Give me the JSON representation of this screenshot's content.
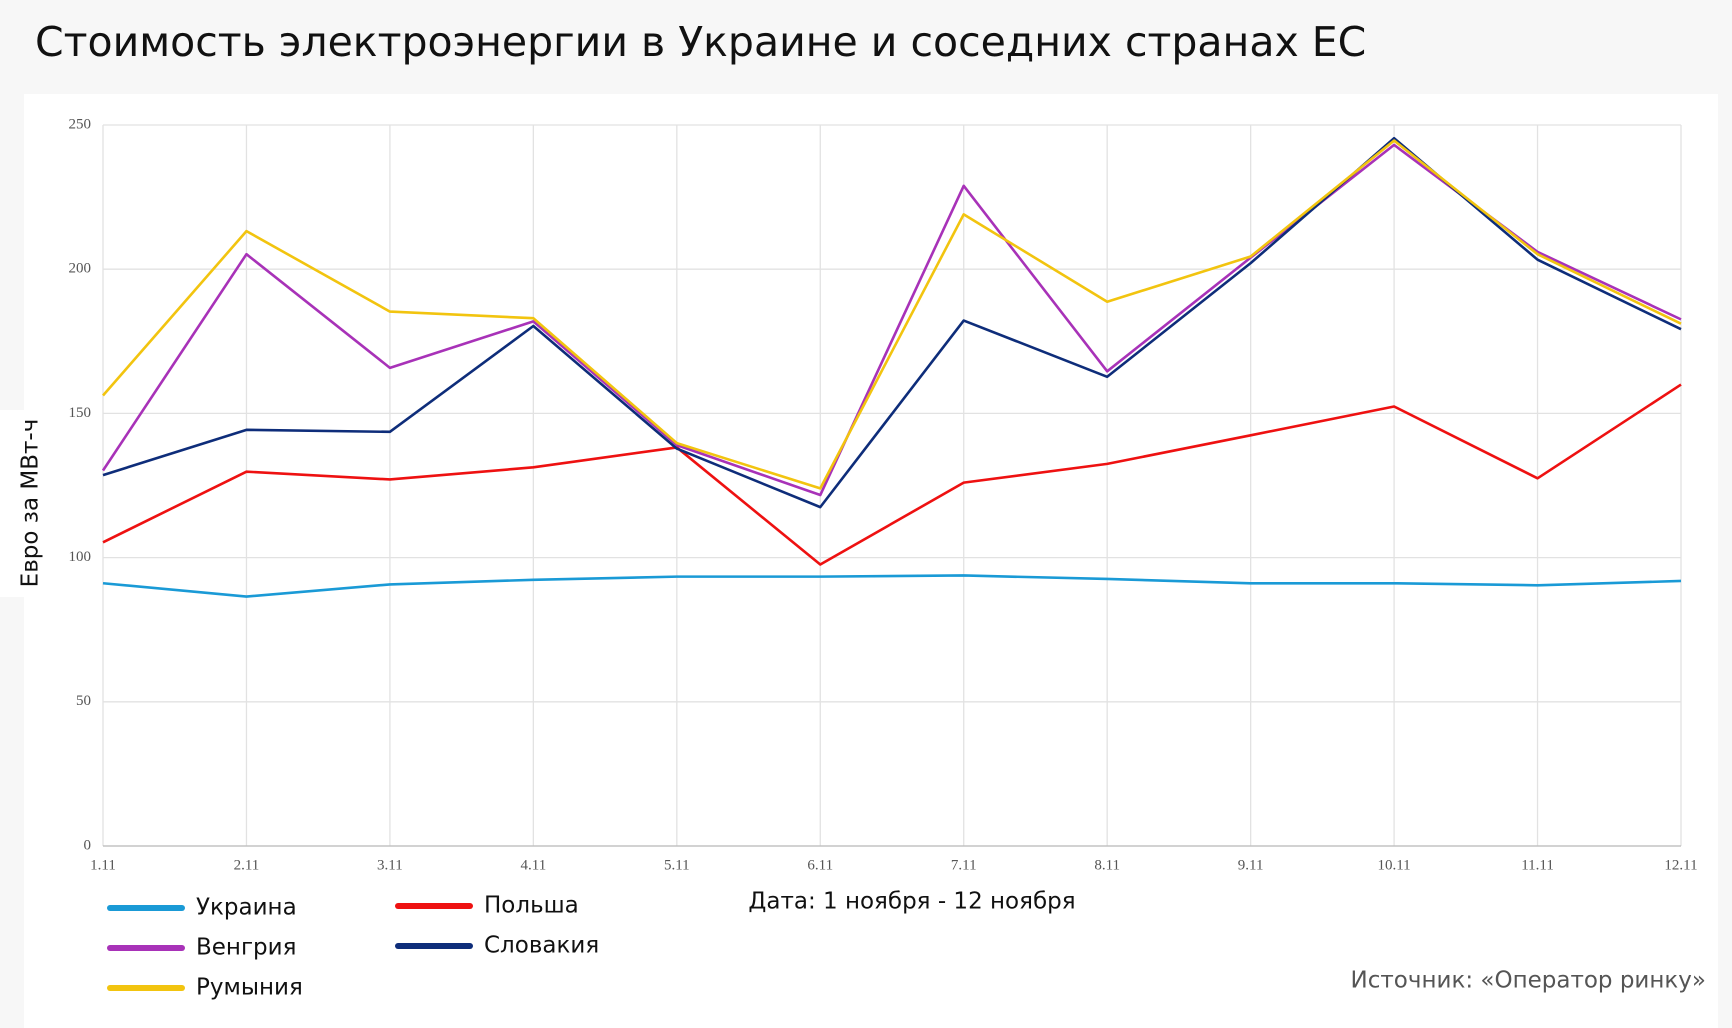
{
  "chart_data": {
    "type": "line",
    "title": "Стоимость электроэнергии в Украине и соседних странах ЕС",
    "x_label": "Дата: 1 ноября - 12 ноября",
    "y_label": "Евро за МВт-ч",
    "source": "Источник: «Оператор ринку»",
    "categories": [
      "1.11",
      "2.11",
      "3.11",
      "4.11",
      "5.11",
      "6.11",
      "7.11",
      "8.11",
      "9.11",
      "10.11",
      "11.11",
      "12.11"
    ],
    "ylim": [
      0,
      250
    ],
    "yticks": [
      0,
      50,
      100,
      150,
      200,
      250
    ],
    "grid": true,
    "series": [
      {
        "name": "Украина",
        "color": "#1a9ad6",
        "values": [
          91.1,
          86.5,
          90.7,
          92.3,
          93.4,
          93.4,
          93.8,
          92.6,
          91.1,
          91.1,
          90.4,
          91.9
        ]
      },
      {
        "name": "Польша",
        "color": "#ee1111",
        "values": [
          105.3,
          129.8,
          127.1,
          131.3,
          138.2,
          97.6,
          126,
          132.5,
          142.4,
          152.4,
          127.5,
          160
        ]
      },
      {
        "name": "Венгрия",
        "color": "#a832b8",
        "values": [
          130.2,
          205.2,
          165.8,
          181.9,
          139,
          121.7,
          228.9,
          164.6,
          204,
          243.1,
          206,
          182.6
        ]
      },
      {
        "name": "Словакия",
        "color": "#0e2d7a",
        "values": [
          128.6,
          144.3,
          143.6,
          180.3,
          137.8,
          117.5,
          182.2,
          162.7,
          202.1,
          245.4,
          203.3,
          179.2
        ]
      },
      {
        "name": "Румыния",
        "color": "#f2c40f",
        "values": [
          156.2,
          213.2,
          185.3,
          183,
          139.7,
          124,
          219,
          188.7,
          204.4,
          244.6,
          205.2,
          181.1
        ]
      }
    ]
  }
}
